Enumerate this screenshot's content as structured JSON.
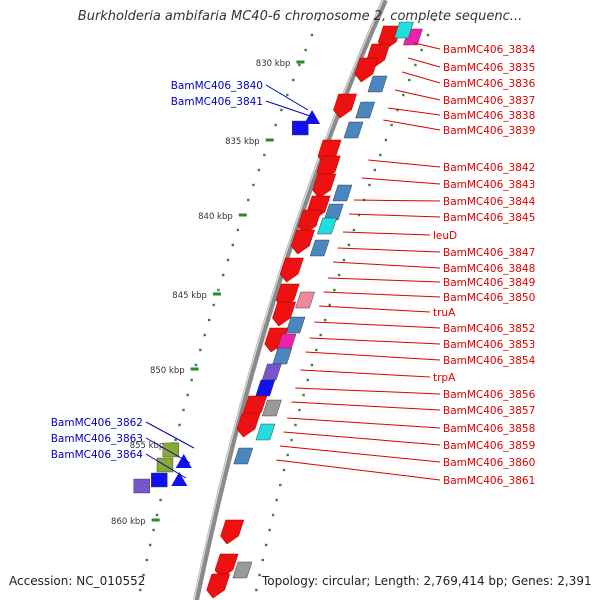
{
  "title": "Burkholderia ambifaria MC40-6 chromosome 2, complete sequenc...",
  "accession": "Accession: NC_010552",
  "topology": "Topology: circular; Length: 2,769,414 bp; Genes: 2,391",
  "colors": {
    "backbone": "#8a8a8a",
    "tick": "#2a8a2a",
    "red_gene": "#ee1111",
    "red_label": "#dd0000",
    "blue_label": "#0000bb",
    "blue_gene": "#1111ee",
    "steel": "#4a86c0",
    "cyan": "#22dddd",
    "magenta": "#ee22aa",
    "violet": "#7755cc",
    "gray": "#999999",
    "olive": "#88aa33",
    "pink": "#ee8899"
  },
  "kbp_ticks": [
    "830 kbp",
    "835 kbp",
    "840 kbp",
    "845 kbp",
    "850 kbp",
    "855 kbp",
    "860 kbp"
  ],
  "right_labels": [
    "BamMC406_3834",
    "BamMC406_3835",
    "BamMC406_3836",
    "BamMC406_3837",
    "BamMC406_3838",
    "BamMC406_3839",
    "BamMC406_3842",
    "BamMC406_3843",
    "BamMC406_3844",
    "BamMC406_3845",
    "leuD",
    "BamMC406_3847",
    "BamMC406_3848",
    "BamMC406_3849",
    "BamMC406_3850",
    "truA",
    "BamMC406_3852",
    "BamMC406_3853",
    "BamMC406_3854",
    "trpA",
    "BamMC406_3856",
    "BamMC406_3857",
    "BamMC406_3858",
    "BamMC406_3859",
    "BamMC406_3860",
    "BamMC406_3861"
  ],
  "left_labels": [
    "BamMC406_3840",
    "BamMC406_3841",
    "BamMC406_3862",
    "BamMC406_3863",
    "BamMC406_3864"
  ]
}
